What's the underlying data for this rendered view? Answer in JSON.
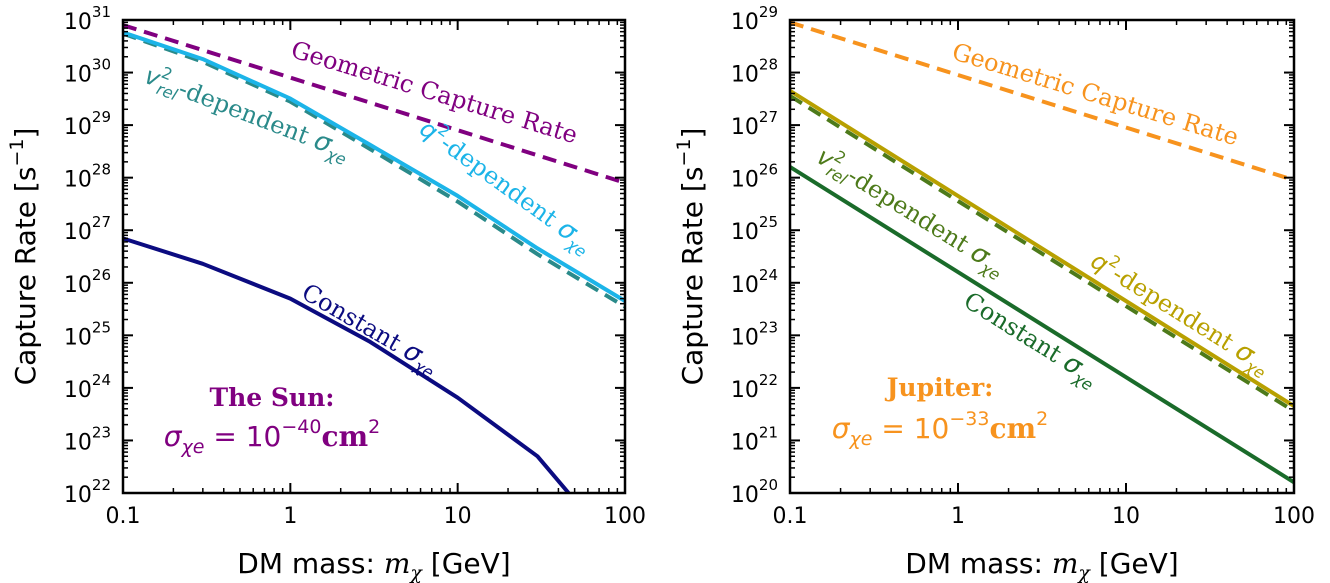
{
  "chart_data": [
    {
      "type": "line",
      "panel": "left",
      "xlabel": "DM mass: m_χ [GeV]",
      "xlabel_parts": {
        "pre": "DM mass: ",
        "var": "m",
        "sub": "χ",
        "post": " [GeV]"
      },
      "ylabel": "Capture Rate [s⁻¹]",
      "ylabel_parts": {
        "pre": "Capture Rate [s",
        "sup": "−1",
        "post": "]"
      },
      "xscale": "log",
      "yscale": "log",
      "xlim": [
        0.1,
        100
      ],
      "ylim": [
        1e+22,
        1e+31
      ],
      "x_tick_labels": [
        "0.1",
        "1",
        "10",
        "100"
      ],
      "x_tick_values": [
        0.1,
        1,
        10,
        100
      ],
      "y_tick_exponents": [
        22,
        23,
        24,
        25,
        26,
        27,
        28,
        29,
        30,
        31
      ],
      "annotation": {
        "title": "The Sun:",
        "symbol": "σ",
        "sub": "χe",
        "eq": " = 10",
        "sup": "−40",
        "unit": "cm",
        "unit_sup": "2",
        "color": "#800080"
      },
      "series": [
        {
          "name": "Geometric Capture Rate",
          "style": "dashed",
          "color": "#800080",
          "x": [
            0.1,
            1,
            10,
            100
          ],
          "y": [
            8e+30,
            8e+29,
            8e+28,
            8e+27
          ]
        },
        {
          "name": "v_rel²-dependent σ_χe",
          "style": "dashed",
          "color": "#2a8a8a",
          "x": [
            0.1,
            0.3,
            1,
            3,
            10,
            30,
            100
          ],
          "y": [
            5.5e+30,
            1.6e+30,
            2.8e+29,
            3.5e+28,
            3.5e+27,
            3.5e+26,
            3.5e+25
          ]
        },
        {
          "name": "q²-dependent σ_χe",
          "style": "solid",
          "color": "#1cb4e8",
          "x": [
            0.1,
            0.3,
            1,
            3,
            10,
            30,
            100
          ],
          "y": [
            5.8e+30,
            1.8e+30,
            3.2e+29,
            4.2e+28,
            4.5e+27,
            4.5e+26,
            4.5e+25
          ]
        },
        {
          "name": "Constant σ_χe",
          "style": "solid",
          "color": "#0b0b80",
          "x": [
            0.1,
            0.3,
            1,
            3,
            10,
            30,
            46
          ],
          "y": [
            7e+26,
            2.3e+26,
            5e+25,
            7.5e+24,
            6.5e+23,
            5e+22,
            1e+22
          ]
        }
      ],
      "labels": {
        "geometric": "Geometric Capture Rate",
        "vrel": {
          "var": "v",
          "sup": "2",
          "sub": "rel",
          "text": "-dependent ",
          "sym": "σ",
          "sym_sub": "χe"
        },
        "q2": {
          "var": "q",
          "sup": "2",
          "text": "-dependent ",
          "sym": "σ",
          "sym_sub": "χe"
        },
        "constant": {
          "text": "Constant ",
          "sym": "σ",
          "sym_sub": "χe"
        }
      }
    },
    {
      "type": "line",
      "panel": "right",
      "xlabel": "DM mass: m_χ [GeV]",
      "ylabel": "Capture Rate [s⁻¹]",
      "xscale": "log",
      "yscale": "log",
      "xlim": [
        0.1,
        100
      ],
      "ylim": [
        1e+20,
        1e+29
      ],
      "x_tick_labels": [
        "0.1",
        "1",
        "10",
        "100"
      ],
      "x_tick_values": [
        0.1,
        1,
        10,
        100
      ],
      "y_tick_exponents": [
        20,
        21,
        22,
        23,
        24,
        25,
        26,
        27,
        28,
        29
      ],
      "annotation": {
        "title": "Jupiter:",
        "symbol": "σ",
        "sub": "χe",
        "eq": " = 10",
        "sup": "−33",
        "unit": "cm",
        "unit_sup": "2",
        "color": "#f7931e"
      },
      "series": [
        {
          "name": "Geometric Capture Rate",
          "style": "dashed",
          "color": "#f7931e",
          "x": [
            0.1,
            1,
            10,
            100
          ],
          "y": [
            9e+28,
            9e+27,
            9e+26,
            9e+25
          ]
        },
        {
          "name": "v_rel²-dependent σ_χe",
          "style": "dashed",
          "color": "#4d7a1a",
          "x": [
            0.1,
            1,
            10,
            100
          ],
          "y": [
            3.6e+27,
            3.6e+25,
            3.6e+23,
            3.6e+21
          ]
        },
        {
          "name": "q²-dependent σ_χe",
          "style": "solid",
          "color": "#b8a000",
          "x": [
            0.1,
            1,
            10,
            100
          ],
          "y": [
            4.5e+27,
            4.5e+25,
            4.5e+23,
            4.5e+21
          ]
        },
        {
          "name": "Constant σ_χe",
          "style": "solid",
          "color": "#1a6b2a",
          "x": [
            0.1,
            1,
            10,
            100
          ],
          "y": [
            1.6e+26,
            1.6e+24,
            1.6e+22,
            1.6e+20
          ]
        }
      ],
      "labels": {
        "geometric": "Geometric Capture Rate",
        "vrel": {
          "var": "v",
          "sup": "2",
          "sub": "rel",
          "text": "-dependent ",
          "sym": "σ",
          "sym_sub": "χe"
        },
        "q2": {
          "var": "q",
          "sup": "2",
          "text": "-dependent ",
          "sym": "σ",
          "sym_sub": "χe"
        },
        "constant": {
          "text": "Constant ",
          "sym": "σ",
          "sym_sub": "χe"
        }
      }
    }
  ]
}
